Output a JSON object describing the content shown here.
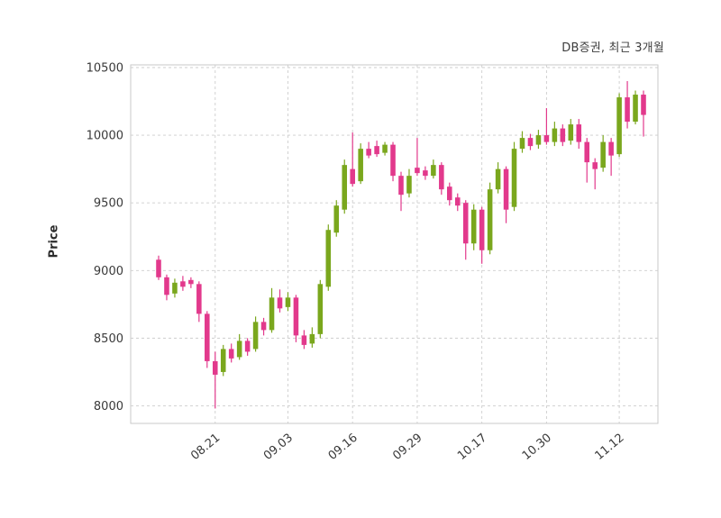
{
  "header": {
    "title": "DB증권, 최근 3개월"
  },
  "chart_data": {
    "type": "candlestick",
    "title": "DB증권, 최근 3개월",
    "xlabel": "",
    "ylabel": "Price",
    "ylim": [
      7870,
      10520
    ],
    "yticks": [
      8000,
      8500,
      9000,
      9500,
      10000,
      10500
    ],
    "xtick_labels": [
      "08.21",
      "09.03",
      "09.16",
      "09.29",
      "10.17",
      "10.30",
      "11.12"
    ],
    "xtick_indices": [
      7,
      16,
      24,
      32,
      40,
      48,
      57
    ],
    "grid": true,
    "up_color": "#7aa71d",
    "down_color": "#e2398c",
    "grid_color": "#cdcdcd",
    "border_color": "#c8c8c8",
    "tick_label_color": "#3a3a3a",
    "ohlc_order": [
      "open",
      "high",
      "low",
      "close"
    ],
    "candles": [
      [
        9080,
        9110,
        8930,
        8950
      ],
      [
        8950,
        8970,
        8780,
        8820
      ],
      [
        8830,
        8940,
        8800,
        8910
      ],
      [
        8920,
        8960,
        8850,
        8880
      ],
      [
        8930,
        8950,
        8870,
        8900
      ],
      [
        8900,
        8920,
        8620,
        8680
      ],
      [
        8680,
        8700,
        8280,
        8330
      ],
      [
        8330,
        8400,
        7980,
        8230
      ],
      [
        8250,
        8450,
        8220,
        8420
      ],
      [
        8420,
        8460,
        8320,
        8350
      ],
      [
        8360,
        8530,
        8340,
        8480
      ],
      [
        8480,
        8500,
        8370,
        8400
      ],
      [
        8420,
        8660,
        8400,
        8620
      ],
      [
        8620,
        8650,
        8520,
        8560
      ],
      [
        8560,
        8870,
        8540,
        8800
      ],
      [
        8800,
        8860,
        8690,
        8720
      ],
      [
        8730,
        8840,
        8700,
        8800
      ],
      [
        8800,
        8820,
        8470,
        8520
      ],
      [
        8520,
        8560,
        8420,
        8450
      ],
      [
        8460,
        8580,
        8430,
        8530
      ],
      [
        8530,
        8930,
        8500,
        8900
      ],
      [
        8880,
        9340,
        8850,
        9300
      ],
      [
        9280,
        9520,
        9250,
        9480
      ],
      [
        9450,
        9820,
        9420,
        9780
      ],
      [
        9750,
        10020,
        9620,
        9640
      ],
      [
        9660,
        9940,
        9640,
        9900
      ],
      [
        9900,
        9950,
        9830,
        9850
      ],
      [
        9920,
        9960,
        9840,
        9860
      ],
      [
        9870,
        9950,
        9850,
        9930
      ],
      [
        9930,
        9950,
        9660,
        9700
      ],
      [
        9700,
        9730,
        9440,
        9560
      ],
      [
        9570,
        9750,
        9540,
        9700
      ],
      [
        9760,
        9980,
        9700,
        9720
      ],
      [
        9740,
        9770,
        9670,
        9700
      ],
      [
        9700,
        9820,
        9680,
        9780
      ],
      [
        9780,
        9800,
        9560,
        9600
      ],
      [
        9620,
        9650,
        9480,
        9520
      ],
      [
        9540,
        9570,
        9440,
        9480
      ],
      [
        9500,
        9520,
        9080,
        9200
      ],
      [
        9200,
        9490,
        9150,
        9450
      ],
      [
        9450,
        9470,
        9050,
        9150
      ],
      [
        9150,
        9650,
        9120,
        9600
      ],
      [
        9600,
        9800,
        9570,
        9750
      ],
      [
        9750,
        9770,
        9350,
        9450
      ],
      [
        9470,
        9950,
        9440,
        9900
      ],
      [
        9900,
        10030,
        9870,
        9980
      ],
      [
        9980,
        10010,
        9890,
        9920
      ],
      [
        9930,
        10040,
        9900,
        10000
      ],
      [
        10000,
        10200,
        9930,
        9950
      ],
      [
        9950,
        10100,
        9920,
        10050
      ],
      [
        10050,
        10080,
        9920,
        9950
      ],
      [
        9960,
        10120,
        9930,
        10080
      ],
      [
        10080,
        10120,
        9900,
        9950
      ],
      [
        9950,
        9980,
        9650,
        9800
      ],
      [
        9800,
        9830,
        9600,
        9750
      ],
      [
        9760,
        10000,
        9730,
        9950
      ],
      [
        9950,
        9980,
        9700,
        9850
      ],
      [
        9860,
        10310,
        9840,
        10280
      ],
      [
        10280,
        10400,
        10050,
        10100
      ],
      [
        10100,
        10330,
        10080,
        10300
      ],
      [
        10300,
        10330,
        9990,
        10150
      ]
    ]
  }
}
